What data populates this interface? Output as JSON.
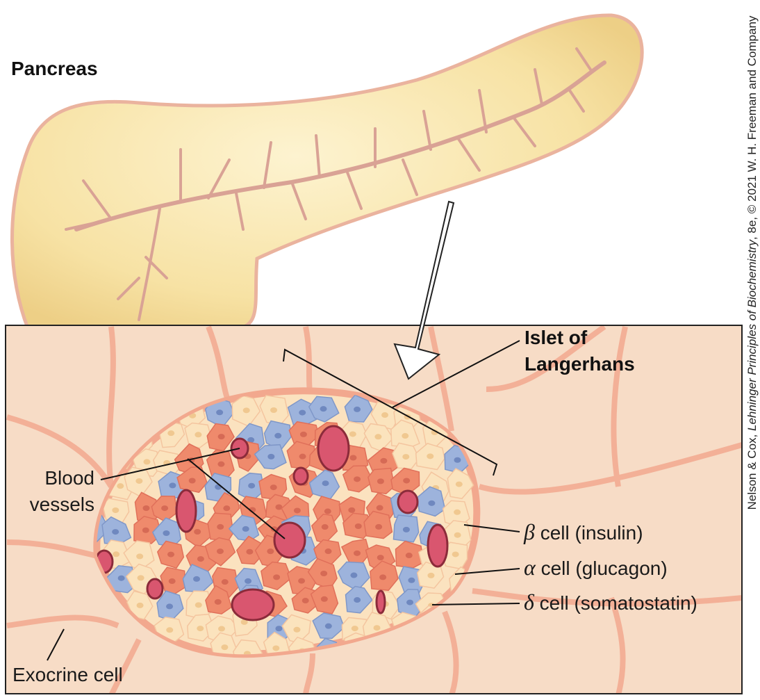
{
  "diagram": {
    "pancreas_label": "Pancreas",
    "islet_label": {
      "lines": [
        "Islet of",
        "Langerhans"
      ]
    },
    "blood_vessels_label": {
      "lines": [
        "Blood",
        "vessels"
      ]
    },
    "cell_labels": [
      {
        "symbol": "β",
        "text": "cell (insulin)"
      },
      {
        "symbol": "α",
        "text": "cell (glucagon)"
      },
      {
        "symbol": "δ",
        "text": "cell (somatostatin)"
      }
    ],
    "exocrine_label": "Exocrine cell",
    "credit": {
      "authors": "Nelson & Cox, ",
      "book": "Lehninger Principles of Biochemistry",
      "rest": ", 8e, © 2021 W. H. Freeman and Company"
    }
  }
}
